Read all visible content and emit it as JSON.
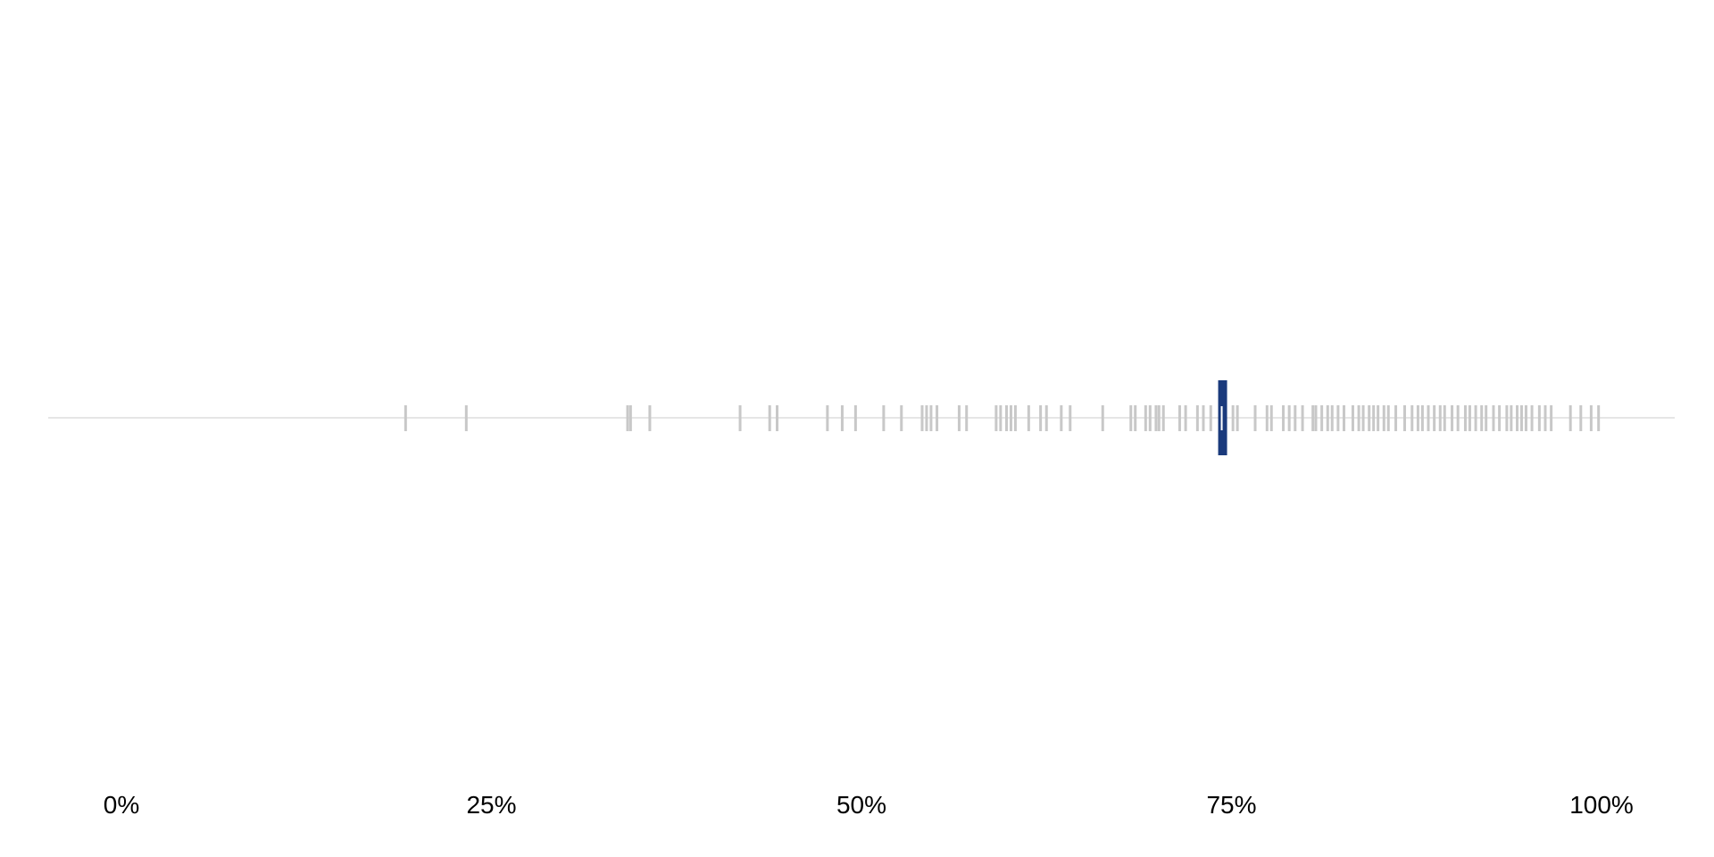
{
  "chart_data": {
    "type": "strip",
    "title": "",
    "xlabel": "",
    "ylabel": "",
    "xlim": [
      -0.05,
      1.05
    ],
    "grid": false,
    "legend": "none",
    "x_ticks": [
      {
        "value": 0.0,
        "label": "0%"
      },
      {
        "value": 0.25,
        "label": "25%"
      },
      {
        "value": 0.5,
        "label": "50%"
      },
      {
        "value": 0.75,
        "label": "75%"
      },
      {
        "value": 1.0,
        "label": "100%"
      }
    ],
    "series": [
      {
        "values": [
          0.192,
          0.233,
          0.342,
          0.344,
          0.357,
          0.418,
          0.438,
          0.443,
          0.477,
          0.487,
          0.496,
          0.515,
          0.527,
          0.541,
          0.544,
          0.547,
          0.551,
          0.566,
          0.571,
          0.591,
          0.594,
          0.598,
          0.601,
          0.604,
          0.613,
          0.621,
          0.625,
          0.635,
          0.641,
          0.663,
          0.682,
          0.685,
          0.692,
          0.695,
          0.699,
          0.701,
          0.704,
          0.715,
          0.719,
          0.727,
          0.731,
          0.736,
          0.751,
          0.754,
          0.766,
          0.774,
          0.777,
          0.785,
          0.789,
          0.793,
          0.798,
          0.805,
          0.807,
          0.811,
          0.815,
          0.818,
          0.822,
          0.826,
          0.832,
          0.836,
          0.839,
          0.843,
          0.846,
          0.849,
          0.853,
          0.856,
          0.861,
          0.867,
          0.872,
          0.876,
          0.879,
          0.883,
          0.887,
          0.891,
          0.894,
          0.899,
          0.903,
          0.908,
          0.911,
          0.915,
          0.919,
          0.922,
          0.927,
          0.931,
          0.936,
          0.939,
          0.943,
          0.946,
          0.949,
          0.953,
          0.958,
          0.962,
          0.966,
          0.979,
          0.986,
          0.993,
          0.998
        ],
        "color": "#c8c8c8"
      }
    ],
    "highlight": {
      "value": 0.744,
      "color": "#1a3a7c"
    },
    "baseline_color": "#e6e6e6"
  }
}
